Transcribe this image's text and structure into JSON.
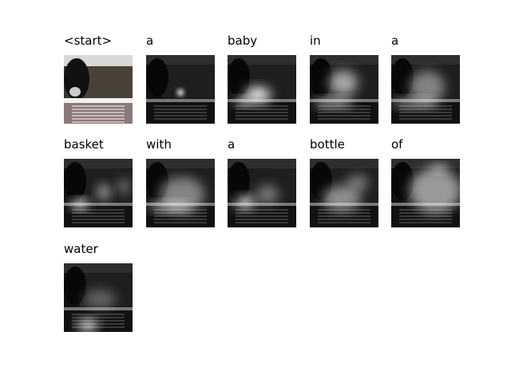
{
  "words": [
    "<start>",
    "a",
    "baby",
    "in",
    "a",
    "basket",
    "with",
    "a",
    "bottle",
    "of",
    "water"
  ]
}
